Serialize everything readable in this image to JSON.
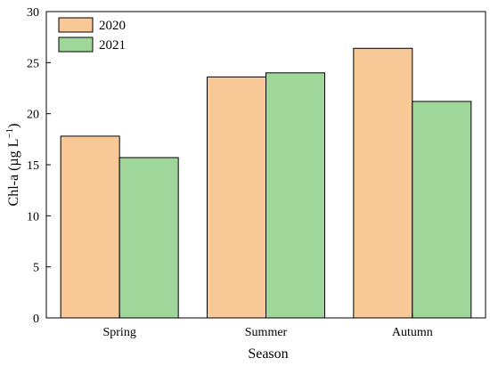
{
  "chart_data": {
    "type": "bar",
    "categories": [
      "Spring",
      "Summer",
      "Autumn"
    ],
    "series": [
      {
        "name": "2020",
        "values": [
          17.8,
          23.6,
          26.4
        ],
        "color": "#f9c897"
      },
      {
        "name": "2021",
        "values": [
          15.7,
          24.0,
          21.2
        ],
        "color": "#9fd79b"
      }
    ],
    "xlabel": "Season",
    "ylabel": "Chl-a (µg L",
    "ylabel_sup": "−1",
    "ylabel_close": ")",
    "ylim": [
      0,
      30
    ],
    "yticks": [
      "0",
      "5",
      "10",
      "15",
      "20",
      "25",
      "30"
    ],
    "legend_position": "top-left",
    "grid": false
  }
}
